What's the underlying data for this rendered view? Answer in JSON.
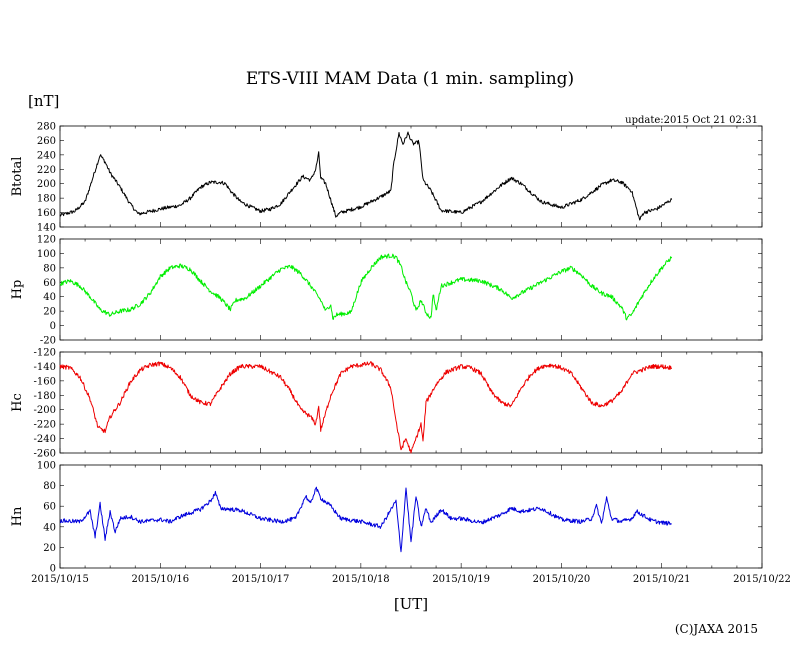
{
  "chart_data": {
    "type": "line",
    "title": "ETS-VIII MAM Data (1 min. sampling)",
    "unit_label": "[nT]",
    "update_text": "update:2015 Oct 21 02:31",
    "xlabel": "[UT]",
    "copyright": "(C)JAXA 2015",
    "x_tick_labels": [
      "2015/10/15",
      "2015/10/16",
      "2015/10/17",
      "2015/10/18",
      "2015/10/19",
      "2015/10/20",
      "2015/10/21",
      "2015/10/22"
    ],
    "x_range_days": [
      0,
      7
    ],
    "panels": [
      {
        "name": "Btotal",
        "ylabel": "Btotal",
        "color": "#000000",
        "ylim": [
          140,
          280
        ],
        "yticks": [
          140,
          160,
          180,
          200,
          220,
          240,
          260,
          280
        ],
        "noise": 2.5,
        "points": [
          [
            0,
            156
          ],
          [
            0.15,
            162
          ],
          [
            0.25,
            175
          ],
          [
            0.32,
            205
          ],
          [
            0.4,
            240
          ],
          [
            0.45,
            230
          ],
          [
            0.5,
            215
          ],
          [
            0.6,
            195
          ],
          [
            0.7,
            172
          ],
          [
            0.78,
            158
          ],
          [
            0.85,
            160
          ],
          [
            1.0,
            165
          ],
          [
            1.2,
            170
          ],
          [
            1.3,
            180
          ],
          [
            1.4,
            195
          ],
          [
            1.5,
            202
          ],
          [
            1.6,
            202
          ],
          [
            1.65,
            200
          ],
          [
            1.7,
            190
          ],
          [
            1.8,
            175
          ],
          [
            1.9,
            168
          ],
          [
            2.0,
            162
          ],
          [
            2.1,
            165
          ],
          [
            2.2,
            172
          ],
          [
            2.3,
            190
          ],
          [
            2.42,
            210
          ],
          [
            2.5,
            205
          ],
          [
            2.55,
            220
          ],
          [
            2.58,
            242
          ],
          [
            2.6,
            208
          ],
          [
            2.65,
            200
          ],
          [
            2.75,
            155
          ],
          [
            2.8,
            160
          ],
          [
            3.0,
            168
          ],
          [
            3.2,
            182
          ],
          [
            3.3,
            190
          ],
          [
            3.33,
            230
          ],
          [
            3.38,
            270
          ],
          [
            3.42,
            255
          ],
          [
            3.47,
            270
          ],
          [
            3.52,
            255
          ],
          [
            3.58,
            258
          ],
          [
            3.62,
            205
          ],
          [
            3.7,
            190
          ],
          [
            3.8,
            163
          ],
          [
            4.0,
            160
          ],
          [
            4.2,
            175
          ],
          [
            4.4,
            198
          ],
          [
            4.5,
            208
          ],
          [
            4.6,
            200
          ],
          [
            4.8,
            175
          ],
          [
            5.0,
            167
          ],
          [
            5.2,
            178
          ],
          [
            5.4,
            198
          ],
          [
            5.5,
            205
          ],
          [
            5.6,
            202
          ],
          [
            5.7,
            190
          ],
          [
            5.75,
            165
          ],
          [
            5.78,
            150
          ],
          [
            5.82,
            160
          ],
          [
            5.95,
            165
          ],
          [
            6.1,
            178
          ]
        ]
      },
      {
        "name": "Hp",
        "ylabel": "Hp",
        "color": "#00ee00",
        "ylim": [
          -20,
          120
        ],
        "yticks": [
          -20,
          0,
          20,
          40,
          60,
          80,
          100,
          120
        ],
        "noise": 3,
        "points": [
          [
            0,
            58
          ],
          [
            0.1,
            62
          ],
          [
            0.2,
            55
          ],
          [
            0.3,
            40
          ],
          [
            0.4,
            22
          ],
          [
            0.5,
            15
          ],
          [
            0.6,
            20
          ],
          [
            0.7,
            22
          ],
          [
            0.8,
            30
          ],
          [
            0.9,
            45
          ],
          [
            1.0,
            68
          ],
          [
            1.1,
            80
          ],
          [
            1.2,
            83
          ],
          [
            1.3,
            78
          ],
          [
            1.4,
            62
          ],
          [
            1.5,
            48
          ],
          [
            1.6,
            38
          ],
          [
            1.7,
            22
          ],
          [
            1.75,
            35
          ],
          [
            1.85,
            38
          ],
          [
            2.0,
            55
          ],
          [
            2.2,
            78
          ],
          [
            2.3,
            82
          ],
          [
            2.4,
            72
          ],
          [
            2.5,
            55
          ],
          [
            2.6,
            35
          ],
          [
            2.65,
            20
          ],
          [
            2.7,
            30
          ],
          [
            2.72,
            10
          ],
          [
            2.76,
            15
          ],
          [
            2.9,
            18
          ],
          [
            3.0,
            60
          ],
          [
            3.1,
            80
          ],
          [
            3.2,
            95
          ],
          [
            3.3,
            97
          ],
          [
            3.35,
            95
          ],
          [
            3.4,
            82
          ],
          [
            3.45,
            60
          ],
          [
            3.5,
            45
          ],
          [
            3.55,
            20
          ],
          [
            3.6,
            35
          ],
          [
            3.65,
            18
          ],
          [
            3.7,
            10
          ],
          [
            3.72,
            45
          ],
          [
            3.75,
            20
          ],
          [
            3.8,
            55
          ],
          [
            4.0,
            64
          ],
          [
            4.2,
            62
          ],
          [
            4.4,
            50
          ],
          [
            4.5,
            38
          ],
          [
            4.6,
            45
          ],
          [
            4.8,
            60
          ],
          [
            5.0,
            75
          ],
          [
            5.1,
            80
          ],
          [
            5.2,
            70
          ],
          [
            5.3,
            55
          ],
          [
            5.4,
            45
          ],
          [
            5.5,
            40
          ],
          [
            5.6,
            25
          ],
          [
            5.65,
            10
          ],
          [
            5.7,
            15
          ],
          [
            5.8,
            40
          ],
          [
            5.9,
            62
          ],
          [
            6.0,
            80
          ],
          [
            6.1,
            95
          ]
        ]
      },
      {
        "name": "Hc",
        "ylabel": "Hc",
        "color": "#ee0000",
        "ylim": [
          -260,
          -120
        ],
        "yticks": [
          -260,
          -240,
          -220,
          -200,
          -180,
          -160,
          -140,
          -120
        ],
        "noise": 3,
        "points": [
          [
            0,
            -140
          ],
          [
            0.1,
            -142
          ],
          [
            0.2,
            -155
          ],
          [
            0.3,
            -185
          ],
          [
            0.38,
            -225
          ],
          [
            0.45,
            -230
          ],
          [
            0.5,
            -210
          ],
          [
            0.6,
            -190
          ],
          [
            0.7,
            -162
          ],
          [
            0.8,
            -145
          ],
          [
            0.9,
            -138
          ],
          [
            1.0,
            -136
          ],
          [
            1.1,
            -142
          ],
          [
            1.2,
            -155
          ],
          [
            1.3,
            -180
          ],
          [
            1.4,
            -190
          ],
          [
            1.5,
            -192
          ],
          [
            1.6,
            -170
          ],
          [
            1.7,
            -150
          ],
          [
            1.8,
            -140
          ],
          [
            2.0,
            -140
          ],
          [
            2.2,
            -155
          ],
          [
            2.3,
            -175
          ],
          [
            2.4,
            -200
          ],
          [
            2.5,
            -210
          ],
          [
            2.55,
            -220
          ],
          [
            2.58,
            -195
          ],
          [
            2.6,
            -228
          ],
          [
            2.7,
            -180
          ],
          [
            2.8,
            -150
          ],
          [
            2.9,
            -140
          ],
          [
            3.0,
            -138
          ],
          [
            3.1,
            -136
          ],
          [
            3.2,
            -145
          ],
          [
            3.3,
            -170
          ],
          [
            3.35,
            -215
          ],
          [
            3.4,
            -255
          ],
          [
            3.45,
            -240
          ],
          [
            3.5,
            -260
          ],
          [
            3.55,
            -240
          ],
          [
            3.6,
            -220
          ],
          [
            3.62,
            -245
          ],
          [
            3.65,
            -190
          ],
          [
            3.75,
            -165
          ],
          [
            3.85,
            -148
          ],
          [
            4.0,
            -140
          ],
          [
            4.1,
            -142
          ],
          [
            4.2,
            -150
          ],
          [
            4.3,
            -175
          ],
          [
            4.4,
            -190
          ],
          [
            4.5,
            -195
          ],
          [
            4.6,
            -170
          ],
          [
            4.7,
            -150
          ],
          [
            4.8,
            -140
          ],
          [
            4.9,
            -138
          ],
          [
            5.0,
            -142
          ],
          [
            5.1,
            -150
          ],
          [
            5.2,
            -170
          ],
          [
            5.3,
            -190
          ],
          [
            5.4,
            -195
          ],
          [
            5.5,
            -188
          ],
          [
            5.6,
            -175
          ],
          [
            5.7,
            -150
          ],
          [
            5.8,
            -145
          ],
          [
            5.9,
            -140
          ],
          [
            6.0,
            -140
          ],
          [
            6.1,
            -142
          ]
        ]
      },
      {
        "name": "Hn",
        "ylabel": "Hn",
        "color": "#0000dd",
        "ylim": [
          0,
          100
        ],
        "yticks": [
          0,
          20,
          40,
          60,
          80,
          100
        ],
        "noise": 2,
        "points": [
          [
            0,
            46
          ],
          [
            0.2,
            45
          ],
          [
            0.3,
            55
          ],
          [
            0.35,
            30
          ],
          [
            0.4,
            62
          ],
          [
            0.45,
            28
          ],
          [
            0.5,
            55
          ],
          [
            0.55,
            35
          ],
          [
            0.6,
            48
          ],
          [
            0.7,
            50
          ],
          [
            0.8,
            45
          ],
          [
            1.0,
            47
          ],
          [
            1.1,
            45
          ],
          [
            1.2,
            50
          ],
          [
            1.4,
            57
          ],
          [
            1.5,
            65
          ],
          [
            1.55,
            73
          ],
          [
            1.6,
            58
          ],
          [
            1.8,
            56
          ],
          [
            2.0,
            48
          ],
          [
            2.2,
            45
          ],
          [
            2.35,
            48
          ],
          [
            2.45,
            70
          ],
          [
            2.5,
            62
          ],
          [
            2.55,
            78
          ],
          [
            2.6,
            68
          ],
          [
            2.7,
            60
          ],
          [
            2.8,
            48
          ],
          [
            3.0,
            45
          ],
          [
            3.2,
            40
          ],
          [
            3.35,
            65
          ],
          [
            3.4,
            15
          ],
          [
            3.45,
            78
          ],
          [
            3.5,
            25
          ],
          [
            3.55,
            70
          ],
          [
            3.6,
            40
          ],
          [
            3.65,
            58
          ],
          [
            3.7,
            44
          ],
          [
            3.8,
            57
          ],
          [
            3.9,
            48
          ],
          [
            4.0,
            48
          ],
          [
            4.2,
            44
          ],
          [
            4.3,
            48
          ],
          [
            4.4,
            52
          ],
          [
            4.5,
            58
          ],
          [
            4.6,
            55
          ],
          [
            4.8,
            58
          ],
          [
            5.0,
            47
          ],
          [
            5.2,
            45
          ],
          [
            5.3,
            48
          ],
          [
            5.35,
            60
          ],
          [
            5.4,
            43
          ],
          [
            5.45,
            68
          ],
          [
            5.5,
            48
          ],
          [
            5.6,
            45
          ],
          [
            5.7,
            48
          ],
          [
            5.75,
            55
          ],
          [
            5.8,
            52
          ],
          [
            5.9,
            46
          ],
          [
            6.0,
            44
          ],
          [
            6.1,
            43
          ]
        ]
      }
    ]
  }
}
